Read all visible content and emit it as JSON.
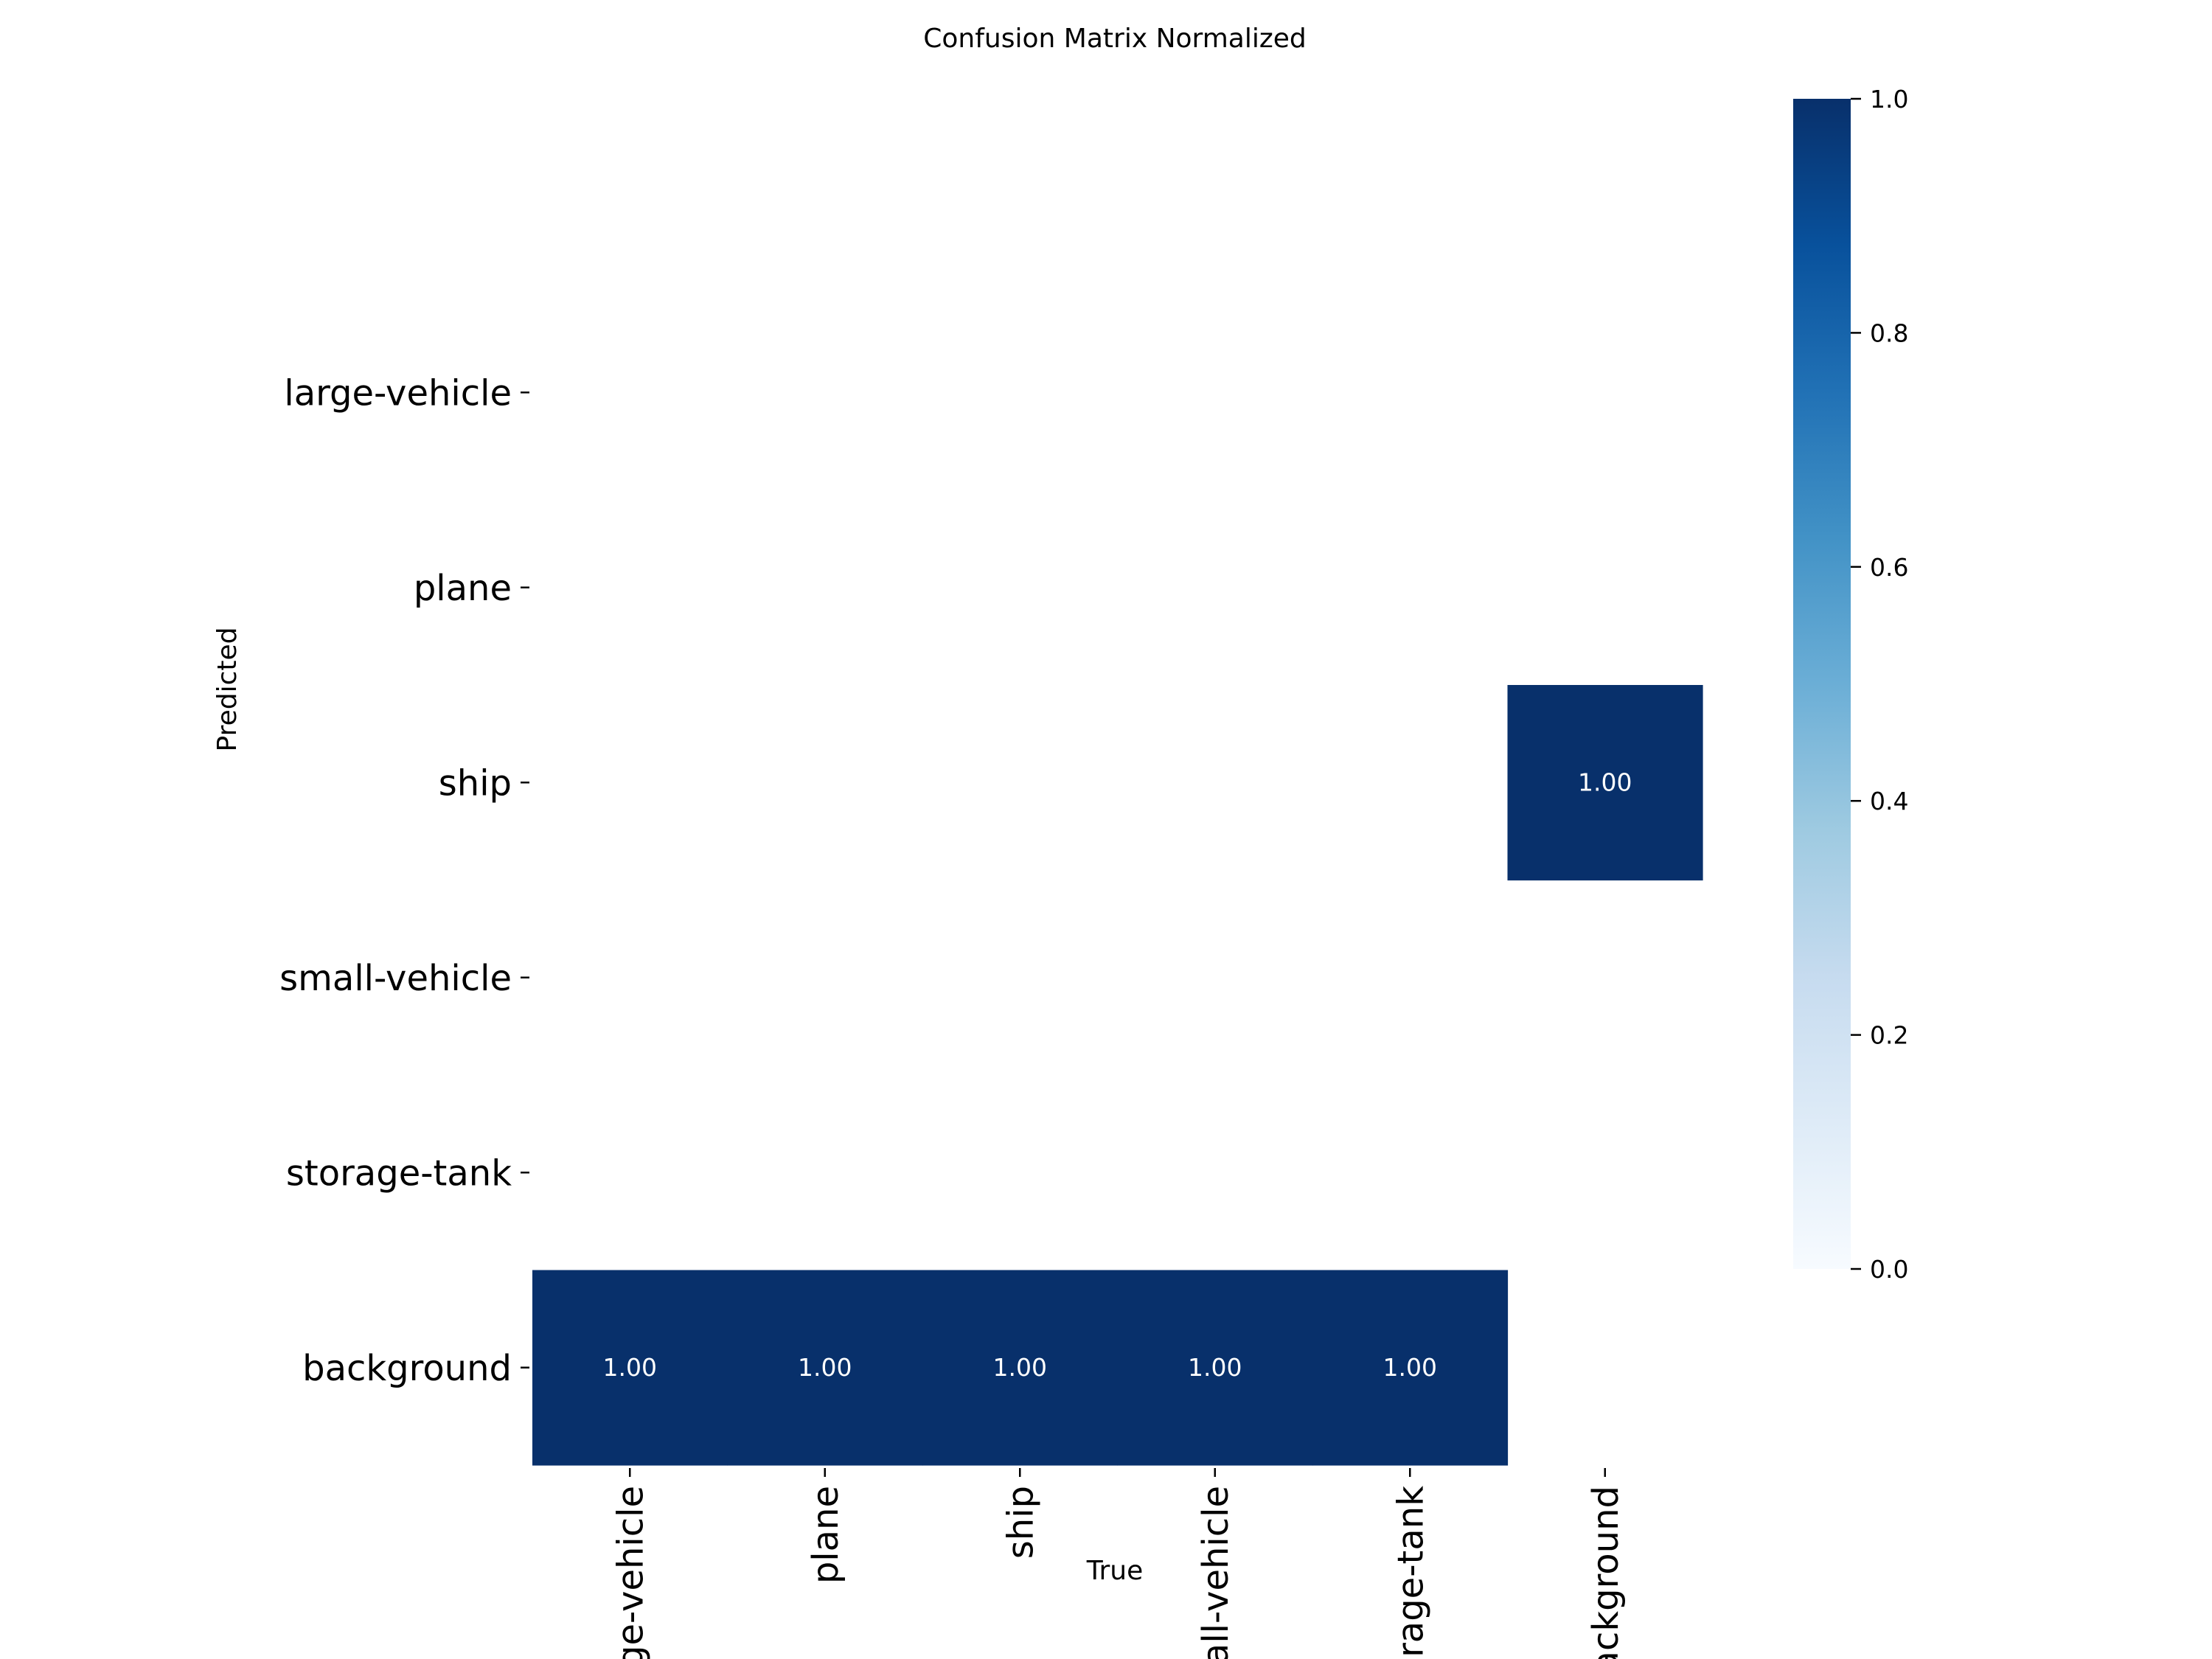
{
  "chart_data": {
    "type": "heatmap",
    "title": "Confusion Matrix Normalized",
    "xlabel": "True",
    "ylabel": "Predicted",
    "x_categories": [
      "large-vehicle",
      "plane",
      "ship",
      "small-vehicle",
      "storage-tank",
      "background"
    ],
    "y_categories": [
      "large-vehicle",
      "plane",
      "ship",
      "small-vehicle",
      "storage-tank",
      "background"
    ],
    "values": [
      [
        null,
        null,
        null,
        null,
        null,
        null
      ],
      [
        null,
        null,
        null,
        null,
        null,
        null
      ],
      [
        null,
        null,
        null,
        null,
        null,
        1.0
      ],
      [
        null,
        null,
        null,
        null,
        null,
        null
      ],
      [
        null,
        null,
        null,
        null,
        null,
        null
      ],
      [
        1.0,
        1.0,
        1.0,
        1.0,
        1.0,
        null
      ]
    ],
    "value_format": "0.00",
    "colorbar": {
      "range": [
        0.0,
        1.0
      ],
      "ticks": [
        "0.0",
        "0.2",
        "0.4",
        "0.6",
        "0.8",
        "1.0"
      ],
      "colormap": "Blues",
      "colors": [
        "#f7fbff",
        "#deebf7",
        "#c6dbef",
        "#9ecae1",
        "#6baed6",
        "#4292c6",
        "#2171b5",
        "#08519c",
        "#08306b"
      ]
    },
    "grid": false
  }
}
